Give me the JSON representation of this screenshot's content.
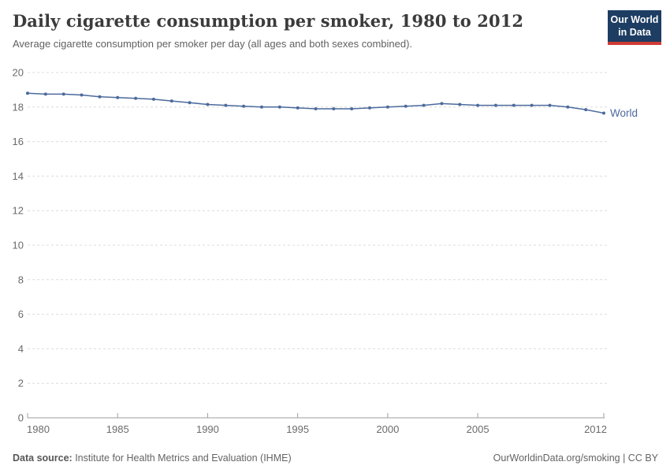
{
  "chart_data": {
    "type": "line",
    "title": "Daily cigarette consumption per smoker, 1980 to 2012",
    "subtitle": "Average cigarette consumption per smoker per day (all ages and both sexes combined).",
    "xlabel": "",
    "ylabel": "",
    "xlim": [
      1980,
      2012
    ],
    "ylim": [
      0,
      20
    ],
    "x_ticks": [
      1980,
      1985,
      1990,
      1995,
      2000,
      2005,
      2012
    ],
    "y_ticks": [
      0,
      2,
      4,
      6,
      8,
      10,
      12,
      14,
      16,
      18,
      20
    ],
    "grid": "horizontal-dashed",
    "legend_position": "end-of-line-label",
    "series": [
      {
        "name": "World",
        "color": "#4c6a9c",
        "x": [
          1980,
          1981,
          1982,
          1983,
          1984,
          1985,
          1986,
          1987,
          1988,
          1989,
          1990,
          1991,
          1992,
          1993,
          1994,
          1995,
          1996,
          1997,
          1998,
          1999,
          2000,
          2001,
          2002,
          2003,
          2004,
          2005,
          2006,
          2007,
          2008,
          2009,
          2010,
          2011,
          2012
        ],
        "values": [
          18.8,
          18.75,
          18.75,
          18.7,
          18.6,
          18.55,
          18.5,
          18.45,
          18.35,
          18.25,
          18.15,
          18.1,
          18.05,
          18.0,
          18.0,
          17.95,
          17.9,
          17.9,
          17.9,
          17.95,
          18.0,
          18.05,
          18.1,
          18.2,
          18.15,
          18.1,
          18.1,
          18.1,
          18.1,
          18.1,
          18.0,
          17.85,
          17.65
        ]
      }
    ]
  },
  "header": {
    "logo": {
      "line1": "Our World",
      "line2": "in Data"
    }
  },
  "footer": {
    "source_label": "Data source:",
    "source_text": " Institute for Health Metrics and Evaluation (IHME)",
    "credit": "OurWorldinData.org/smoking | CC BY"
  },
  "colors": {
    "series_line": "#4c6a9c",
    "gridline": "#dcdcdc",
    "axis": "#9e9e9e",
    "tick_label": "#6b6b6b",
    "title": "#3b3b3b",
    "subtitle": "#616161",
    "footer": "#646464",
    "logo_bg": "#1d3d63",
    "logo_bar": "#cf3b34"
  }
}
